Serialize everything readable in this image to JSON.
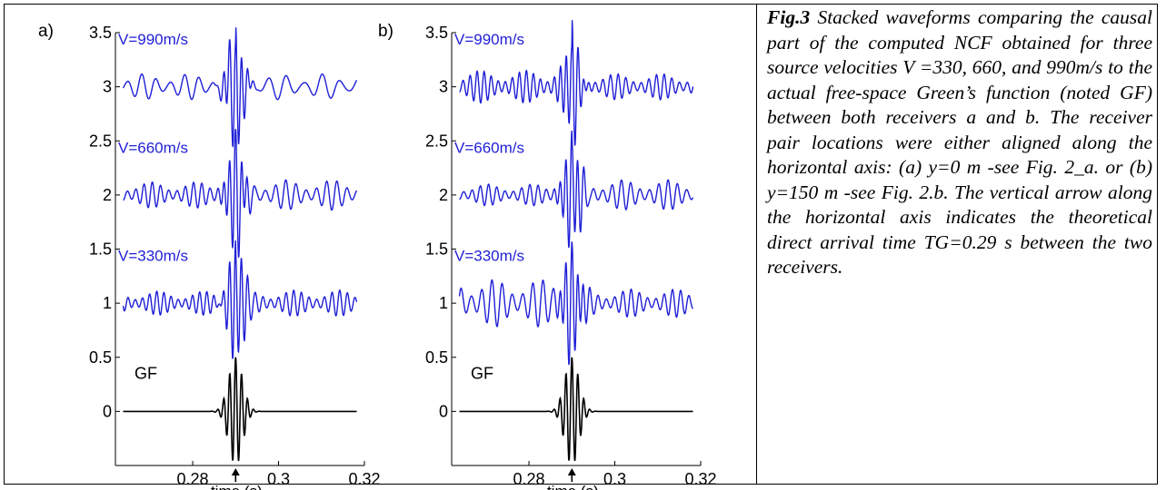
{
  "caption": {
    "fig_label": "Fig.3",
    "text": " Stacked waveforms comparing the causal part of the computed NCF obtained for three source velocities V =330, 660, and 990m/s to the actual free-space Green’s function (noted GF) between both receivers a and b. The receiver pair locations were either aligned along the horizontal axis: (a) y=0 m -see Fig. 2_a. or (b) y=150 m -see Fig. 2.b. The vertical arrow along the horizontal axis indicates the theoretical direct arrival time TG=0.29 s between the two receivers."
  },
  "colors": {
    "ncf": "#1f1fd6",
    "gf": "#000000"
  },
  "chart_data": [
    {
      "type": "line",
      "panel": "a)",
      "xlabel": "time (s)",
      "xlim": [
        0.262,
        0.32
      ],
      "ylim": [
        -0.5,
        3.5
      ],
      "xticks": [
        0.28,
        0.3,
        0.32
      ],
      "xtick_labels": [
        "0.28",
        "0.3",
        "0.32"
      ],
      "yticks": [
        0,
        0.5,
        1,
        1.5,
        2,
        2.5,
        3,
        3.5
      ],
      "ytick_labels": [
        "0",
        "0.5",
        "1",
        "1.5",
        "2",
        "2.5",
        "3",
        "3.5"
      ],
      "arrow_at": 0.29,
      "series": [
        {
          "name": "V=990m/s",
          "offset": 3,
          "kind": "ncf",
          "pre_amp": 0.12,
          "post_amp": 0.12,
          "pre_freq": 300,
          "post_freq": 240
        },
        {
          "name": "V=660m/s",
          "offset": 2,
          "kind": "ncf",
          "pre_amp": 0.12,
          "post_amp": 0.14,
          "pre_freq": 520,
          "post_freq": 420
        },
        {
          "name": "V=330m/s",
          "offset": 1,
          "kind": "ncf",
          "pre_amp": 0.11,
          "post_amp": 0.12,
          "pre_freq": 600,
          "post_freq": 560
        },
        {
          "name": "GF",
          "offset": 0,
          "kind": "gf"
        }
      ]
    },
    {
      "type": "line",
      "panel": "b)",
      "xlabel": "time (s)",
      "xlim": [
        0.262,
        0.32
      ],
      "ylim": [
        -0.5,
        3.5
      ],
      "xticks": [
        0.28,
        0.3,
        0.32
      ],
      "xtick_labels": [
        "0.28",
        "0.3",
        "0.32"
      ],
      "yticks": [
        0,
        0.5,
        1,
        1.5,
        2,
        2.5,
        3,
        3.5
      ],
      "ytick_labels": [
        "0",
        "0.5",
        "1",
        "1.5",
        "2",
        "2.5",
        "3",
        "3.5"
      ],
      "arrow_at": 0.29,
      "series": [
        {
          "name": "V=990m/s",
          "offset": 3,
          "kind": "ncf",
          "pre_amp": 0.15,
          "post_amp": 0.12,
          "pre_freq": 610,
          "post_freq": 560
        },
        {
          "name": "V=660m/s",
          "offset": 2,
          "kind": "ncf",
          "pre_amp": 0.1,
          "post_amp": 0.14,
          "pre_freq": 520,
          "post_freq": 460
        },
        {
          "name": "V=330m/s",
          "offset": 1,
          "kind": "ncf",
          "pre_amp": 0.22,
          "post_amp": 0.13,
          "pre_freq": 420,
          "post_freq": 520
        },
        {
          "name": "GF",
          "offset": 0,
          "kind": "gf"
        }
      ]
    }
  ]
}
